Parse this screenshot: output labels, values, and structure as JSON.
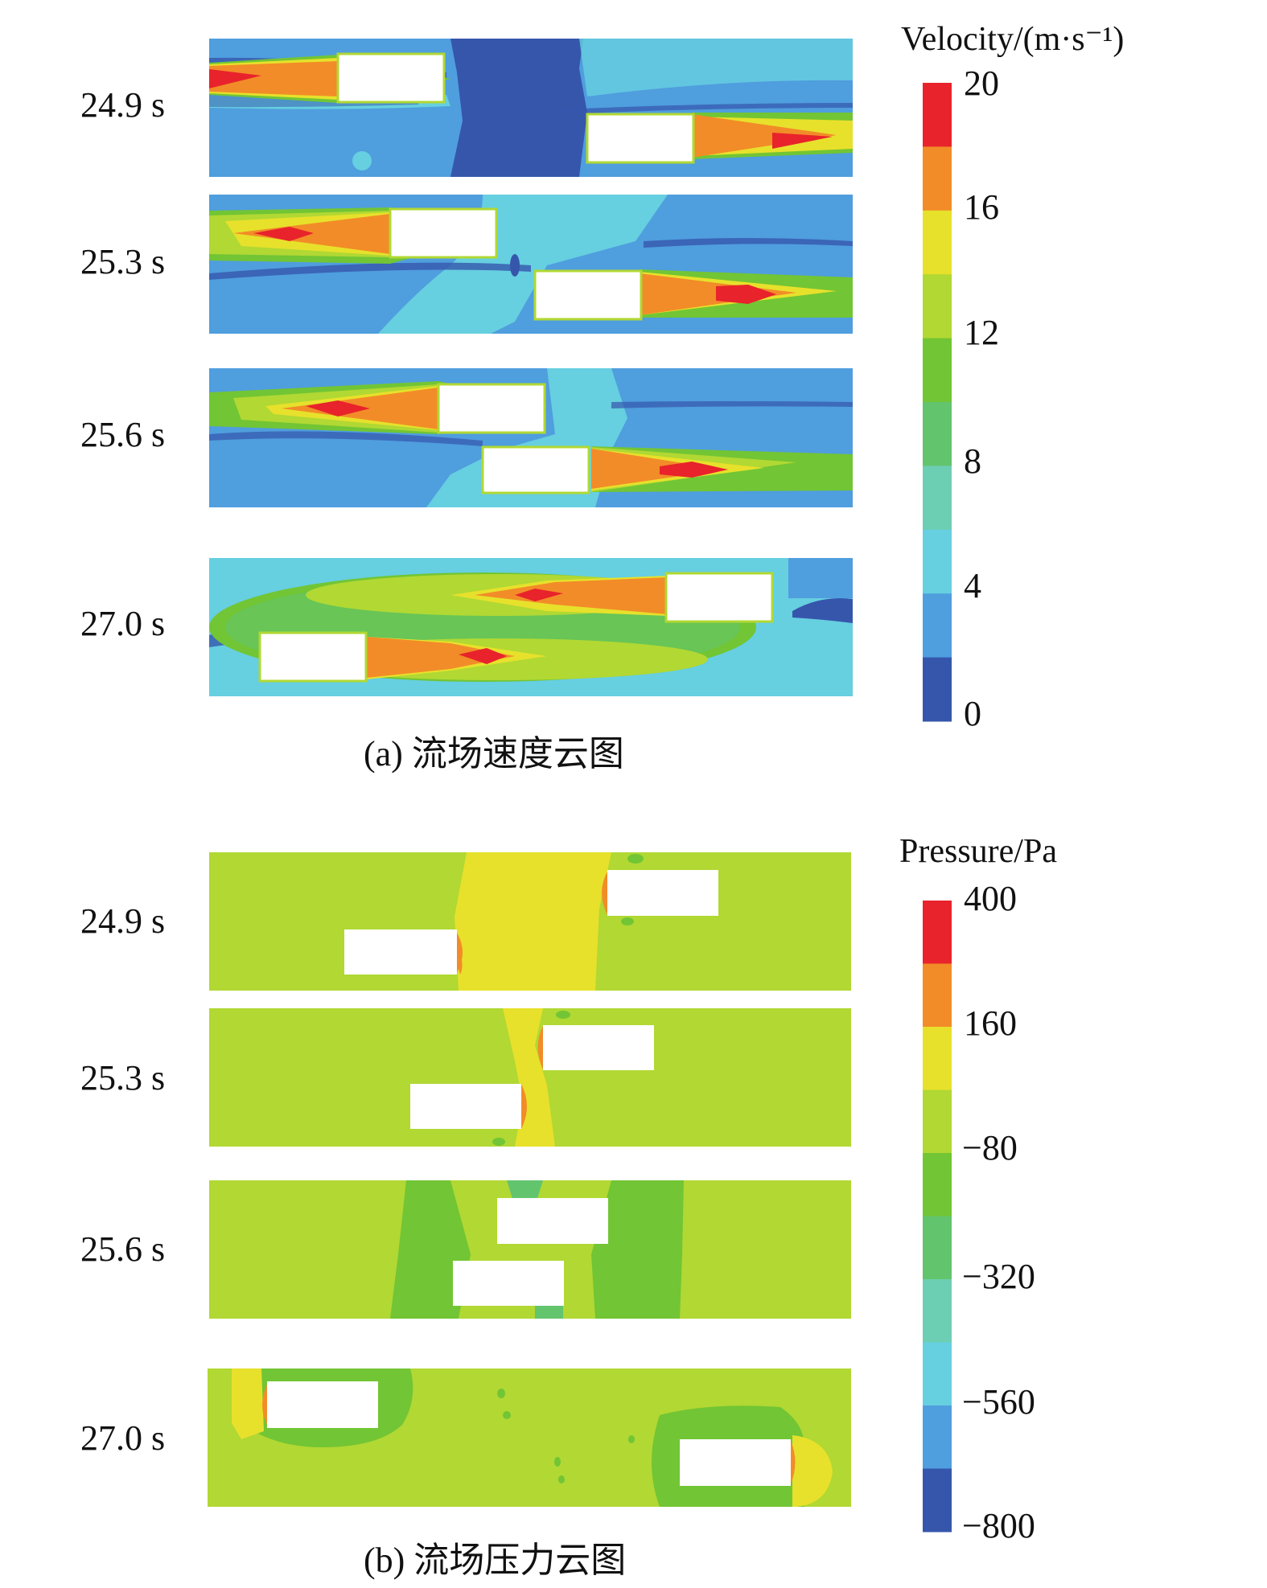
{
  "velocity_panel": {
    "caption": "(a) 流场速度云图",
    "times": [
      "24.9 s",
      "25.3 s",
      "25.6 s",
      "27.0 s"
    ],
    "legend": {
      "title": "Velocity/(m·s⁻¹)",
      "ticks": [
        "20",
        "16",
        "12",
        "8",
        "4",
        "0"
      ],
      "colors": [
        "#e8232b",
        "#f28c28",
        "#e7e12b",
        "#b1d833",
        "#72c534",
        "#63c46e",
        "#6ccfb3",
        "#66cfe0",
        "#4f9ede",
        "#3656ac"
      ]
    }
  },
  "pressure_panel": {
    "caption": "(b) 流场压力云图",
    "times": [
      "24.9 s",
      "25.3 s",
      "25.6 s",
      "27.0 s"
    ],
    "legend": {
      "title": "Pressure/Pa",
      "ticks": [
        "400",
        "160",
        "−80",
        "−320",
        "−560",
        "−800"
      ],
      "colors": [
        "#e8232b",
        "#f28c28",
        "#e7e12b",
        "#b1d833",
        "#72c534",
        "#63c46e",
        "#6ccfb3",
        "#66cfe0",
        "#4f9ede",
        "#3656ac"
      ]
    }
  }
}
